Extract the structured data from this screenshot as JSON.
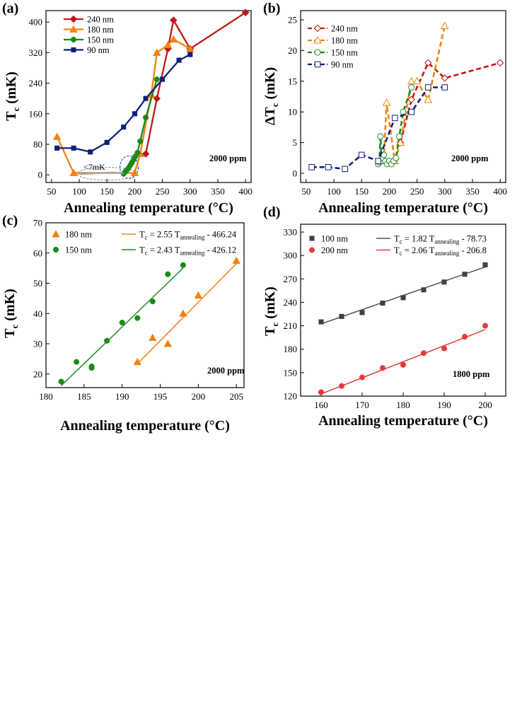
{
  "chart_data": [
    {
      "panel": "(a)",
      "type": "line",
      "xlabel": "Annealing temperature (°C)",
      "ylabel": "Tc (mK)",
      "xlim": [
        40,
        410
      ],
      "ylim": [
        -20,
        430
      ],
      "xticks": [
        50,
        100,
        150,
        200,
        250,
        300,
        350,
        400
      ],
      "yticks": [
        0,
        80,
        160,
        240,
        320,
        400
      ],
      "annotation": "2000 ppm",
      "note": "<7mK",
      "series": [
        {
          "name": "240 nm",
          "color": "#c01818",
          "marker": "diamond",
          "x": [
            220,
            240,
            260,
            270,
            300,
            400
          ],
          "y": [
            55,
            200,
            330,
            405,
            330,
            425
          ]
        },
        {
          "name": "180 nm",
          "color": "#f2820f",
          "marker": "triangle",
          "x": [
            60,
            90,
            200,
            210,
            230,
            240,
            260,
            270,
            300
          ],
          "y": [
            100,
            5,
            5,
            55,
            210,
            320,
            340,
            355,
            330
          ]
        },
        {
          "name": "150 nm",
          "color": "#1a8a1a",
          "marker": "circle",
          "x": [
            180,
            183,
            186,
            189,
            192,
            195,
            198,
            201,
            205,
            210,
            220,
            240
          ],
          "y": [
            3,
            8,
            13,
            18,
            25,
            32,
            40,
            48,
            58,
            88,
            150,
            250
          ]
        },
        {
          "name": "90 nm",
          "color": "#101f7a",
          "marker": "square",
          "x": [
            60,
            90,
            120,
            150,
            180,
            200,
            220,
            250,
            280,
            300
          ],
          "y": [
            70,
            70,
            60,
            85,
            125,
            160,
            200,
            250,
            300,
            315
          ]
        },
        {
          "name": "<7mK",
          "color": "#a0a0a0",
          "marker": "cross-square",
          "in_legend": false,
          "x": [
            100,
            115,
            130,
            145,
            160,
            170,
            180
          ],
          "y": [
            2,
            3,
            4,
            5,
            6,
            5,
            4
          ]
        }
      ]
    },
    {
      "panel": "(b)",
      "type": "line",
      "xlabel": "Annealing temperature (°C)",
      "ylabel": "ΔTc (mK)",
      "xlim": [
        40,
        410
      ],
      "ylim": [
        -1.5,
        26.5
      ],
      "xticks": [
        50,
        100,
        150,
        200,
        250,
        300,
        350,
        400
      ],
      "yticks": [
        0,
        5,
        10,
        15,
        20,
        25
      ],
      "annotation": "2000 ppm",
      "series": [
        {
          "name": "240 nm",
          "color": "#c01818",
          "marker": "diamond-open",
          "x": [
            220,
            240,
            270,
            300,
            400
          ],
          "y": [
            5,
            12,
            18,
            15.5,
            18
          ]
        },
        {
          "name": "180 nm",
          "color": "#f2820f",
          "marker": "triangle-open",
          "x": [
            190,
            195,
            210,
            220,
            240,
            250,
            270,
            300
          ],
          "y": [
            2,
            11.5,
            2,
            5,
            15,
            15,
            12,
            24
          ]
        },
        {
          "name": "150 nm",
          "color": "#1a8a1a",
          "marker": "circle-open",
          "x": [
            180,
            182,
            184,
            186,
            188,
            190,
            193,
            196,
            200,
            204,
            208,
            212,
            218,
            225,
            240
          ],
          "y": [
            1.5,
            1.8,
            6,
            2,
            2.5,
            3,
            2,
            1.5,
            2,
            1.5,
            2,
            2.5,
            6,
            10,
            14
          ]
        },
        {
          "name": "90 nm",
          "color": "#101f7a",
          "marker": "square-open",
          "x": [
            60,
            90,
            120,
            150,
            180,
            210,
            240,
            270,
            300
          ],
          "y": [
            1,
            1,
            0.7,
            3,
            2,
            9,
            10,
            14,
            14
          ]
        }
      ]
    },
    {
      "panel": "(c)",
      "type": "scatter",
      "xlabel": "Annealing temperature (°C)",
      "ylabel": "Tc (mK)",
      "xlim": [
        180,
        206
      ],
      "ylim": [
        15.5,
        70
      ],
      "xticks": [
        180,
        185,
        190,
        195,
        200,
        205
      ],
      "yticks": [
        20,
        30,
        40,
        50,
        60,
        70
      ],
      "annotation": "2000 ppm",
      "series": [
        {
          "name": "180 nm",
          "color": "#f2820f",
          "marker": "triangle",
          "x": [
            192,
            194,
            196,
            198,
            200,
            205
          ],
          "y": [
            24,
            32,
            30,
            40,
            46,
            57.5
          ],
          "fit": {
            "label": "Tc = 2.55 Tannealing - 466.24",
            "slope": 2.55,
            "intercept": -466.24,
            "x_range": [
              192,
              205
            ]
          }
        },
        {
          "name": "150 nm",
          "color": "#1a8a1a",
          "marker": "circle",
          "x": [
            182,
            184,
            186,
            186,
            188,
            190,
            192,
            194,
            196,
            198
          ],
          "y": [
            17.5,
            24,
            22,
            22.5,
            31,
            37,
            38.5,
            44,
            53,
            56
          ],
          "fit": {
            "label": "Tc = 2.43 Tannealing - 426.12",
            "slope": 2.43,
            "intercept": -426.12,
            "x_range": [
              182,
              198
            ]
          }
        }
      ]
    },
    {
      "panel": "(d)",
      "type": "scatter",
      "xlabel": "Annealing temperature (°C)",
      "ylabel": "Tc (mK)",
      "xlim": [
        155,
        205
      ],
      "ylim": [
        120,
        340
      ],
      "xticks": [
        160,
        170,
        180,
        190,
        200
      ],
      "yticks": [
        120,
        150,
        180,
        210,
        240,
        270,
        300,
        330
      ],
      "annotation": "1800 ppm",
      "series": [
        {
          "name": "100 nm",
          "color": "#404040",
          "marker": "square",
          "x": [
            160,
            165,
            170,
            175,
            180,
            185,
            190,
            195,
            200
          ],
          "y": [
            215,
            222,
            227,
            239,
            246,
            256,
            266,
            276,
            288
          ],
          "fit": {
            "label": "Tc = 1.82 Tannealing - 78.73",
            "slope": 1.82,
            "intercept": -78.73,
            "x_range": [
              160,
              200
            ]
          }
        },
        {
          "name": "200 nm",
          "color": "#e83a3a",
          "marker": "circle",
          "x": [
            160,
            165,
            170,
            175,
            180,
            185,
            190,
            195,
            200
          ],
          "y": [
            125,
            133,
            144,
            156,
            160,
            175,
            181,
            196,
            210
          ],
          "fit": {
            "label": "Tc = 2.06 Tannealing - 206.8",
            "slope": 2.06,
            "intercept": -206.8,
            "x_range": [
              160,
              200
            ]
          }
        }
      ]
    }
  ]
}
